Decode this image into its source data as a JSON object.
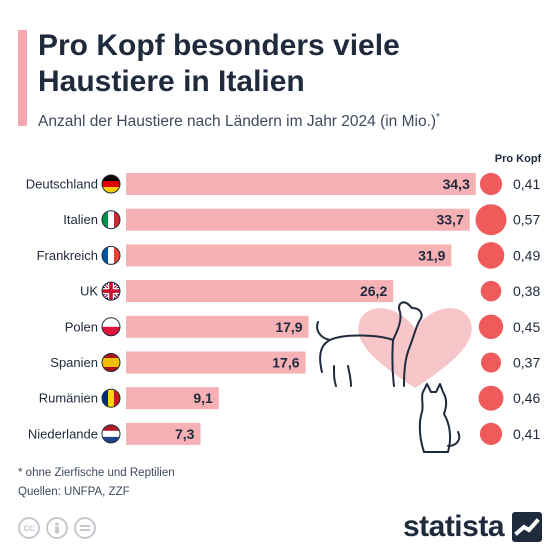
{
  "header": {
    "title": "Pro Kopf besonders viele Haustiere in Italien",
    "subtitle": "Anzahl der Haustiere nach Ländern im Jahr 2024 (in Mio.)",
    "subtitle_mark": "*"
  },
  "colors": {
    "bar": "#f6b1b5",
    "bubble": "#ef5b5b",
    "text": "#1f2a3c",
    "accent": "#f4a8ad",
    "heart": "#f7c6c9"
  },
  "chart_data": {
    "type": "bar",
    "orientation": "horizontal",
    "categories": [
      "Deutschland",
      "Italien",
      "Frankreich",
      "UK",
      "Polen",
      "Spanien",
      "Rumänien",
      "Niederlande"
    ],
    "values": [
      34.3,
      33.7,
      31.9,
      26.2,
      17.9,
      17.6,
      9.1,
      7.3
    ],
    "value_labels": [
      "34,3",
      "33,7",
      "31,9",
      "26,2",
      "17,9",
      "17,6",
      "9,1",
      "7,3"
    ],
    "per_capita_header": "Pro Kopf",
    "per_capita": [
      0.41,
      0.57,
      0.49,
      0.38,
      0.45,
      0.37,
      0.46,
      0.41
    ],
    "per_capita_labels": [
      "0,41",
      "0,57",
      "0,49",
      "0,38",
      "0,45",
      "0,37",
      "0,46",
      "0,41"
    ],
    "flags": [
      "flag-de-icon",
      "flag-it-icon",
      "flag-fr-icon",
      "flag-uk-icon",
      "flag-pl-icon",
      "flag-es-icon",
      "flag-ro-icon",
      "flag-nl-icon"
    ]
  },
  "footer": {
    "footnote": "* ohne Zierfische und Reptilien",
    "sources": "Quellen: UNFPA, ZZF",
    "license_icons": [
      "cc-icon",
      "person-icon",
      "equals-icon"
    ],
    "logo_text": "statista"
  }
}
